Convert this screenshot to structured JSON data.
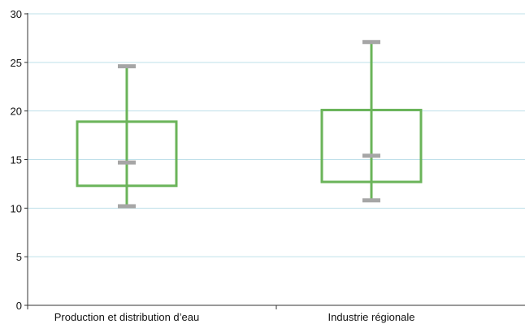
{
  "chart_data": {
    "type": "box",
    "title": "",
    "xlabel": "",
    "ylabel": "",
    "ylim": [
      0,
      30
    ],
    "yticks": [
      0,
      5,
      10,
      15,
      20,
      25,
      30
    ],
    "categories": [
      "Production et distribution d’eau",
      "Industrie régionale"
    ],
    "boxes": [
      {
        "min": 10.2,
        "q1": 12.3,
        "median": 14.7,
        "q3": 18.9,
        "max": 24.6
      },
      {
        "min": 10.8,
        "q1": 12.7,
        "median": 15.4,
        "q3": 20.1,
        "max": 27.1
      }
    ],
    "grid": true,
    "legend": "none",
    "colors": {
      "box": "#6bb45a",
      "whisker_cap": "#a6a6a6",
      "grid": "#bfe0ea",
      "axis": "#333333"
    }
  }
}
